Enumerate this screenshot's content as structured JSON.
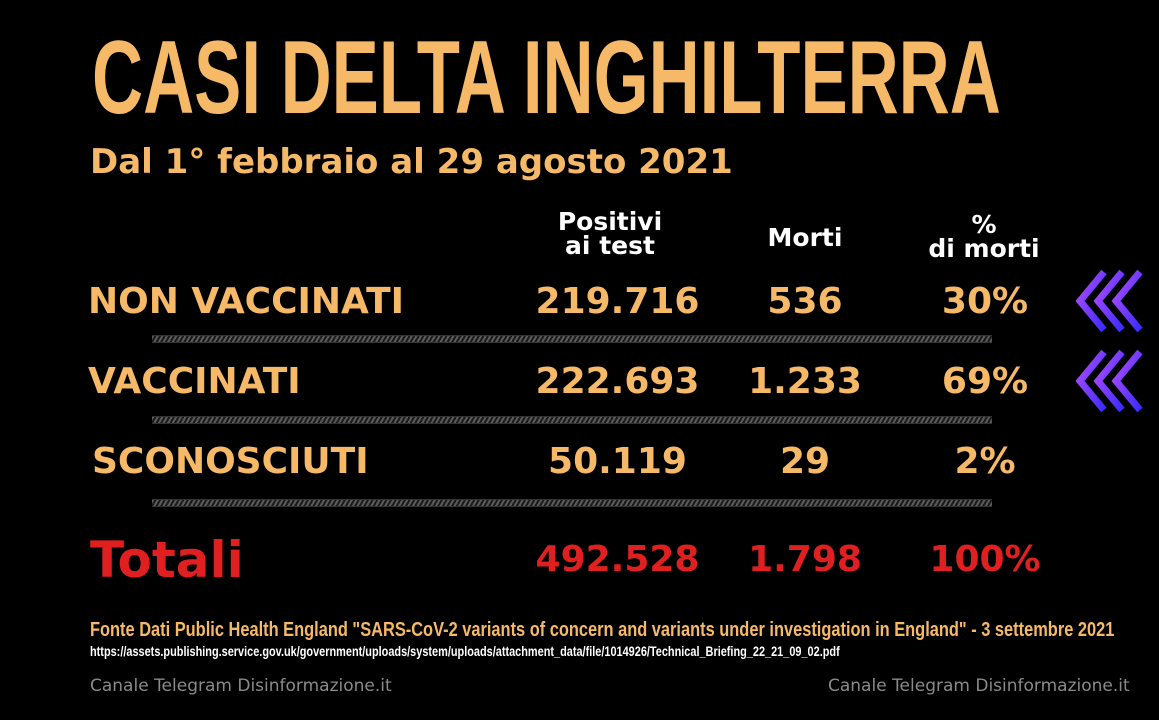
{
  "title": "CASI DELTA INGHILTERRA",
  "subtitle": "Dal 1° febbraio al 29 agosto 2021",
  "columns": {
    "positivi_line1": "Positivi",
    "positivi_line2": "ai test",
    "morti": "Morti",
    "pct_line1": "%",
    "pct_line2": "di morti"
  },
  "rows": [
    {
      "label": "NON VACCINATI",
      "positivi": "219.716",
      "morti": "536",
      "pct": "30%"
    },
    {
      "label": "VACCINATI",
      "positivi": "222.693",
      "morti": "1.233",
      "pct": "69%"
    },
    {
      "label": "SCONOSCIUTI",
      "positivi": "50.119",
      "morti": "29",
      "pct": "2%"
    }
  ],
  "total": {
    "label": "Totali",
    "positivi": "492.528",
    "morti": "1.798",
    "pct": "100%"
  },
  "source": "Fonte Dati Public Health England \"SARS-CoV-2 variants of concern and variants under investigation in England\" - 3 settembre 2021",
  "url": "https://assets.publishing.service.gov.uk/government/uploads/system/uploads/attachment_data/file/1014926/Technical_Briefing_22_21_09_02.pdf",
  "credit_left": "Canale Telegram Disinformazione.it",
  "credit_right": "Canale Telegram Disinformazione.it",
  "colors": {
    "accent": "#f6b967",
    "total": "#e02020",
    "arrow": "#8a3cff"
  },
  "icons": {
    "highlight_arrow": "triple-chevron-left-icon"
  }
}
